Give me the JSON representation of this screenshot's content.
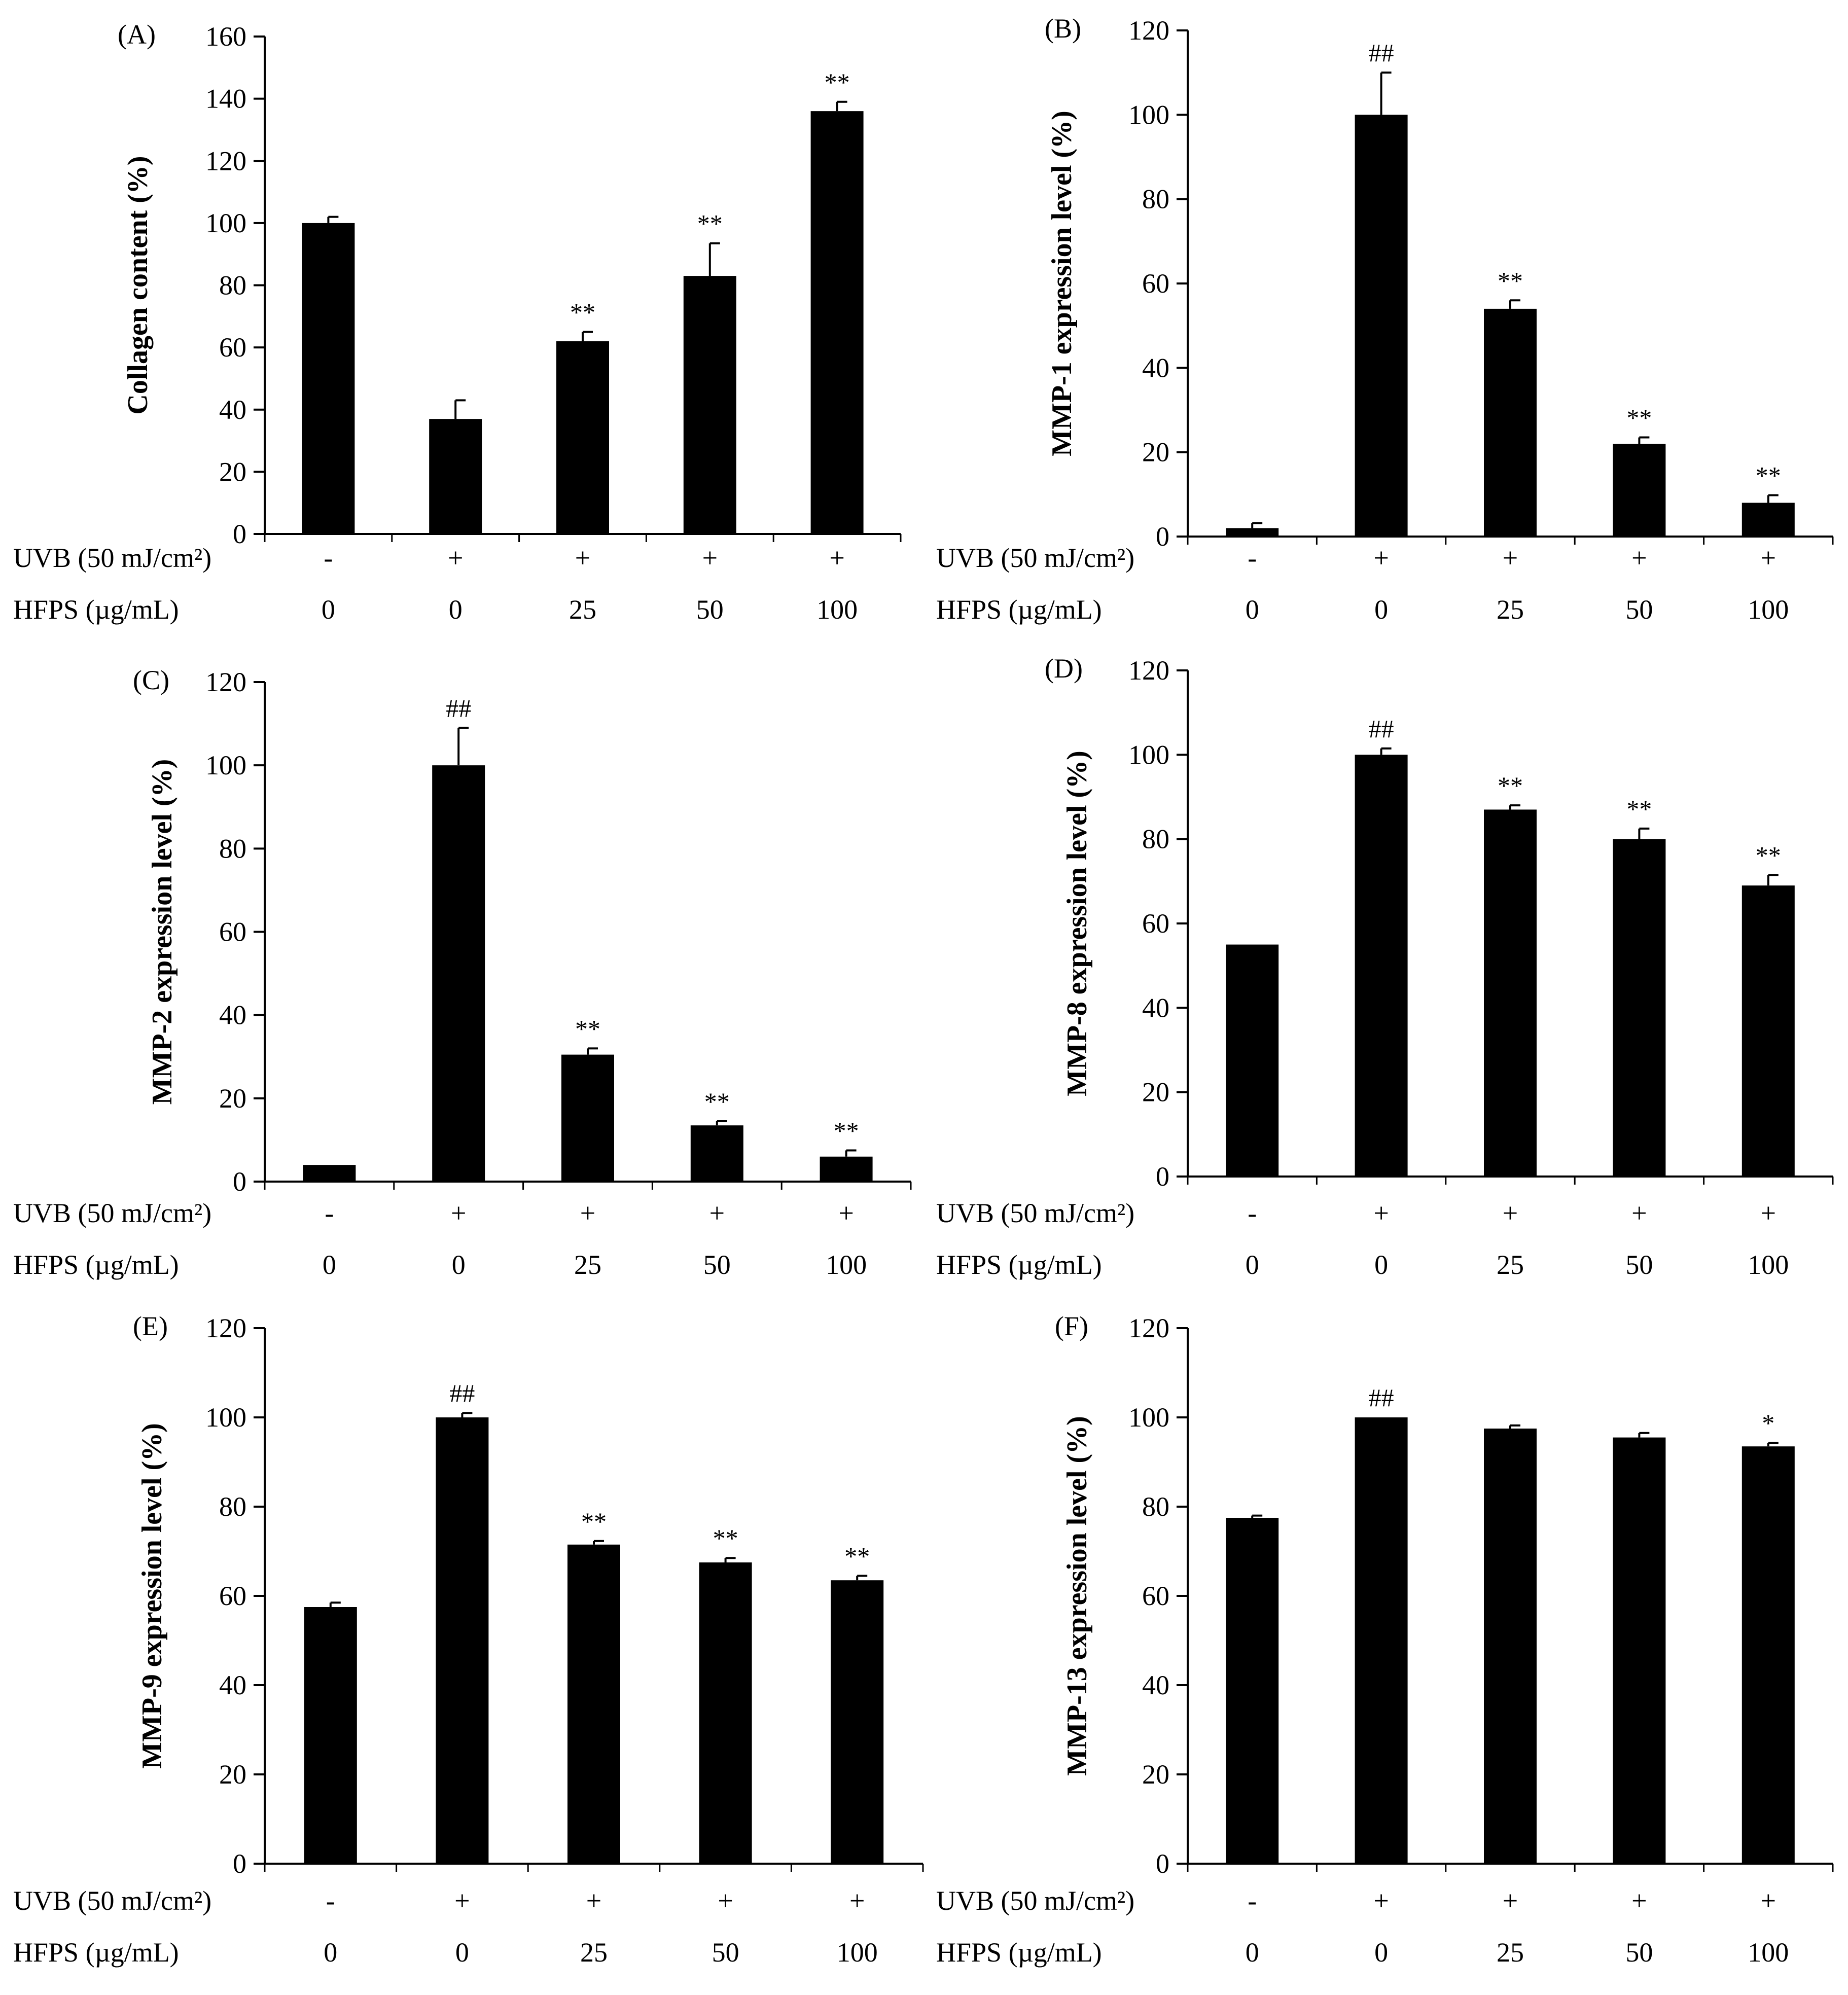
{
  "figure": {
    "row_labels": [
      "UVB (50 mJ/cm²)",
      "HFPS (µg/mL)"
    ]
  },
  "chart_data": [
    {
      "panel": "(A)",
      "type": "bar",
      "ylabel": "Collagen content (%)",
      "ylim": [
        0,
        160
      ],
      "ticks": [
        0,
        20,
        40,
        60,
        80,
        100,
        120,
        140,
        160
      ],
      "uvb": [
        "-",
        "+",
        "+",
        "+",
        "+"
      ],
      "hfps": [
        "0",
        "0",
        "25",
        "50",
        "100"
      ],
      "values": [
        100,
        37,
        62,
        83,
        136
      ],
      "errors": [
        2,
        6,
        3,
        10.5,
        3
      ],
      "annotations": [
        "",
        "",
        "**",
        "**",
        "**"
      ]
    },
    {
      "panel": "(B)",
      "type": "bar",
      "ylabel": "MMP-1 expression level (%)",
      "ylim": [
        0,
        120
      ],
      "ticks": [
        0,
        20,
        40,
        60,
        80,
        100,
        120
      ],
      "uvb": [
        "-",
        "+",
        "+",
        "+",
        "+"
      ],
      "hfps": [
        "0",
        "0",
        "25",
        "50",
        "100"
      ],
      "values": [
        2,
        100,
        54,
        22,
        8
      ],
      "errors": [
        1.2,
        10,
        2,
        1.5,
        1.8
      ],
      "annotations": [
        "",
        "##",
        "**",
        "**",
        "**"
      ]
    },
    {
      "panel": "(C)",
      "type": "bar",
      "ylabel": "MMP-2 expression level (%)",
      "ylim": [
        0,
        120
      ],
      "ticks": [
        0,
        20,
        40,
        60,
        80,
        100,
        120
      ],
      "uvb": [
        "-",
        "+",
        "+",
        "+",
        "+"
      ],
      "hfps": [
        "0",
        "0",
        "25",
        "50",
        "100"
      ],
      "values": [
        4,
        100,
        30.5,
        13.5,
        6
      ],
      "errors": [
        0,
        9,
        1.5,
        1,
        1.5
      ],
      "annotations": [
        "",
        "##",
        "**",
        "**",
        "**"
      ]
    },
    {
      "panel": "(D)",
      "type": "bar",
      "ylabel": "MMP-8 expression level (%)",
      "ylim": [
        0,
        120
      ],
      "ticks": [
        0,
        20,
        40,
        60,
        80,
        100,
        120
      ],
      "uvb": [
        "-",
        "+",
        "+",
        "+",
        "+"
      ],
      "hfps": [
        "0",
        "0",
        "25",
        "50",
        "100"
      ],
      "values": [
        55,
        100,
        87,
        80,
        69
      ],
      "errors": [
        0,
        1.5,
        1,
        2.5,
        2.5
      ],
      "annotations": [
        "",
        "##",
        "**",
        "**",
        "**"
      ]
    },
    {
      "panel": "(E)",
      "type": "bar",
      "ylabel": "MMP-9 expression level (%)",
      "ylim": [
        0,
        120
      ],
      "ticks": [
        0,
        20,
        40,
        60,
        80,
        100,
        120
      ],
      "uvb": [
        "-",
        "+",
        "+",
        "+",
        "+"
      ],
      "hfps": [
        "0",
        "0",
        "25",
        "50",
        "100"
      ],
      "values": [
        57.5,
        100,
        71.5,
        67.5,
        63.5
      ],
      "errors": [
        1,
        1,
        0.8,
        1,
        1
      ],
      "annotations": [
        "",
        "##",
        "**",
        "**",
        "**"
      ]
    },
    {
      "panel": "(F)",
      "type": "bar",
      "ylabel": "MMP-13 expression level (%)",
      "ylim": [
        0,
        120
      ],
      "ticks": [
        0,
        20,
        40,
        60,
        80,
        100,
        120
      ],
      "uvb": [
        "-",
        "+",
        "+",
        "+",
        "+"
      ],
      "hfps": [
        "0",
        "0",
        "25",
        "50",
        "100"
      ],
      "values": [
        77.5,
        100,
        97.5,
        95.5,
        93.5
      ],
      "errors": [
        0.5,
        0,
        0.7,
        1,
        0.8
      ],
      "annotations": [
        "",
        "##",
        "",
        "",
        "*"
      ]
    }
  ]
}
